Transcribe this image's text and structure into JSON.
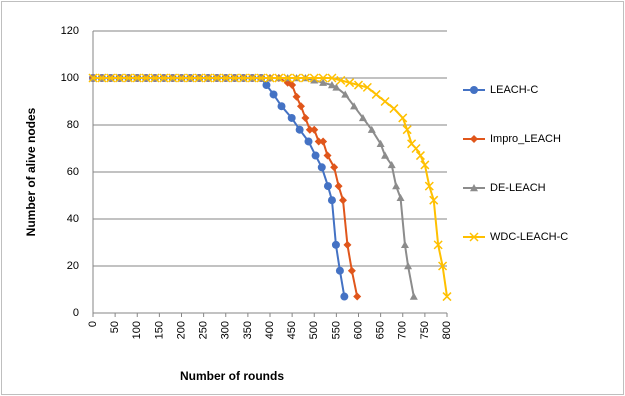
{
  "chart_data": {
    "type": "line",
    "x_label": "Number of rounds",
    "y_label": "Number of alive nodes",
    "xlim": [
      0,
      800
    ],
    "xticks": [
      0,
      50,
      100,
      150,
      200,
      250,
      300,
      350,
      400,
      450,
      500,
      550,
      600,
      650,
      700,
      750,
      800
    ],
    "ylim": [
      0,
      120
    ],
    "yticks": [
      0,
      20,
      40,
      60,
      80,
      100,
      120
    ],
    "grid": true,
    "legend": "right",
    "series": [
      {
        "name": "LEACH-C",
        "color": "#4472c4",
        "marker": "circle",
        "x": [
          0,
          20,
          40,
          60,
          80,
          100,
          120,
          140,
          160,
          180,
          200,
          220,
          240,
          260,
          280,
          300,
          320,
          340,
          360,
          380,
          392,
          408,
          426,
          449,
          467,
          487,
          503,
          517,
          531,
          540,
          549,
          558,
          568
        ],
        "values": [
          100,
          100,
          100,
          100,
          100,
          100,
          100,
          100,
          100,
          100,
          100,
          100,
          100,
          100,
          100,
          100,
          100,
          100,
          100,
          100,
          97,
          93,
          88,
          83,
          78,
          73,
          67,
          62,
          54,
          48,
          29,
          18,
          7
        ]
      },
      {
        "name": "Impro_LEACH",
        "color": "#e0561b",
        "marker": "diamond",
        "x": [
          0,
          20,
          40,
          60,
          80,
          100,
          120,
          140,
          160,
          180,
          200,
          220,
          240,
          260,
          280,
          300,
          320,
          340,
          360,
          380,
          400,
          420,
          440,
          450,
          460,
          470,
          480,
          490,
          500,
          510,
          520,
          530,
          545,
          555,
          565,
          575,
          585,
          597
        ],
        "values": [
          100,
          100,
          100,
          100,
          100,
          100,
          100,
          100,
          100,
          100,
          100,
          100,
          100,
          100,
          100,
          100,
          100,
          100,
          100,
          100,
          100,
          100,
          98,
          97,
          92,
          88,
          83,
          78,
          78,
          73,
          73,
          67,
          62,
          54,
          48,
          29,
          18,
          7
        ]
      },
      {
        "name": "DE-LEACH",
        "color": "#8c8c8c",
        "marker": "triangle",
        "x": [
          0,
          20,
          40,
          60,
          80,
          100,
          120,
          140,
          160,
          180,
          200,
          220,
          240,
          260,
          280,
          300,
          320,
          340,
          360,
          380,
          400,
          420,
          440,
          460,
          480,
          500,
          520,
          540,
          550,
          570,
          590,
          610,
          630,
          650,
          660,
          675,
          685,
          695,
          705,
          712,
          725
        ],
        "values": [
          100,
          100,
          100,
          100,
          100,
          100,
          100,
          100,
          100,
          100,
          100,
          100,
          100,
          100,
          100,
          100,
          100,
          100,
          100,
          100,
          100,
          100,
          100,
          100,
          100,
          99,
          98,
          97,
          96,
          93,
          88,
          83,
          78,
          72,
          67,
          63,
          54,
          49,
          29,
          20,
          7
        ]
      },
      {
        "name": "WDC-LEACH-C",
        "color": "#ffc000",
        "marker": "x",
        "x": [
          0,
          20,
          40,
          60,
          80,
          100,
          120,
          140,
          160,
          180,
          200,
          220,
          240,
          260,
          280,
          300,
          320,
          340,
          360,
          380,
          400,
          420,
          440,
          460,
          480,
          500,
          520,
          540,
          560,
          580,
          600,
          620,
          640,
          660,
          680,
          700,
          710,
          720,
          730,
          740,
          750,
          760,
          770,
          780,
          790,
          800
        ],
        "values": [
          100,
          100,
          100,
          100,
          100,
          100,
          100,
          100,
          100,
          100,
          100,
          100,
          100,
          100,
          100,
          100,
          100,
          100,
          100,
          100,
          100,
          100,
          100,
          100,
          100,
          100,
          100,
          100,
          99,
          98,
          97,
          96,
          93,
          90,
          87,
          83,
          78,
          72,
          70,
          67,
          63,
          54,
          48,
          29,
          20,
          7
        ]
      }
    ]
  }
}
